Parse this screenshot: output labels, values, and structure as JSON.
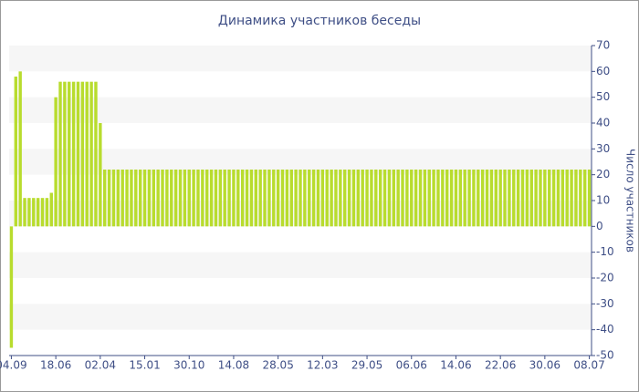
{
  "chart_data": {
    "type": "bar",
    "title": "Динамика участников беседы",
    "y_axis_label": "Число участников",
    "categories": [
      "04.09",
      null,
      null,
      null,
      null,
      null,
      null,
      null,
      null,
      null,
      "18.06",
      null,
      null,
      null,
      null,
      null,
      null,
      null,
      null,
      null,
      "02.04",
      null,
      null,
      null,
      null,
      null,
      null,
      null,
      null,
      null,
      "15.01",
      null,
      null,
      null,
      null,
      null,
      null,
      null,
      null,
      null,
      "30.10",
      null,
      null,
      null,
      null,
      null,
      null,
      null,
      null,
      null,
      "14.08",
      null,
      null,
      null,
      null,
      null,
      null,
      null,
      null,
      null,
      "28.05",
      null,
      null,
      null,
      null,
      null,
      null,
      null,
      null,
      null,
      "12.03",
      null,
      null,
      null,
      null,
      null,
      null,
      null,
      null,
      null,
      "29.05",
      null,
      null,
      null,
      null,
      null,
      null,
      null,
      null,
      null,
      "06.06",
      null,
      null,
      null,
      null,
      null,
      null,
      null,
      null,
      null,
      "14.06",
      null,
      null,
      null,
      null,
      null,
      null,
      null,
      null,
      null,
      "22.06",
      null,
      null,
      null,
      null,
      null,
      null,
      null,
      null,
      null,
      "30.06",
      null,
      null,
      null,
      null,
      null,
      null,
      null,
      null,
      null,
      "08.07"
    ],
    "values": [
      -47,
      58,
      60,
      11,
      11,
      11,
      11,
      11,
      11,
      13,
      50,
      56,
      56,
      56,
      56,
      56,
      56,
      56,
      56,
      56,
      40,
      22,
      22,
      22,
      22,
      22,
      22,
      22,
      22,
      22,
      22,
      22,
      22,
      22,
      22,
      22,
      22,
      22,
      22,
      22,
      22,
      22,
      22,
      22,
      22,
      22,
      22,
      22,
      22,
      22,
      22,
      22,
      22,
      22,
      22,
      22,
      22,
      22,
      22,
      22,
      22,
      22,
      22,
      22,
      22,
      22,
      22,
      22,
      22,
      22,
      22,
      22,
      22,
      22,
      22,
      22,
      22,
      22,
      22,
      22,
      22,
      22,
      22,
      22,
      22,
      22,
      22,
      22,
      22,
      22,
      22,
      22,
      22,
      22,
      22,
      22,
      22,
      22,
      22,
      22,
      22,
      22,
      22,
      22,
      22,
      22,
      22,
      22,
      22,
      22,
      22,
      22,
      22,
      22,
      22,
      22,
      22,
      22,
      22,
      22,
      22,
      22,
      22,
      22,
      22,
      22,
      22,
      22,
      22,
      22,
      22
    ],
    "color": "#b8dc2e",
    "ylim": [
      -50,
      70
    ],
    "yticks": [
      -50,
      -40,
      -30,
      -20,
      -10,
      0,
      10,
      20,
      30,
      40,
      50,
      60,
      70
    ],
    "y_axis_side": "right",
    "grid": "bands"
  }
}
